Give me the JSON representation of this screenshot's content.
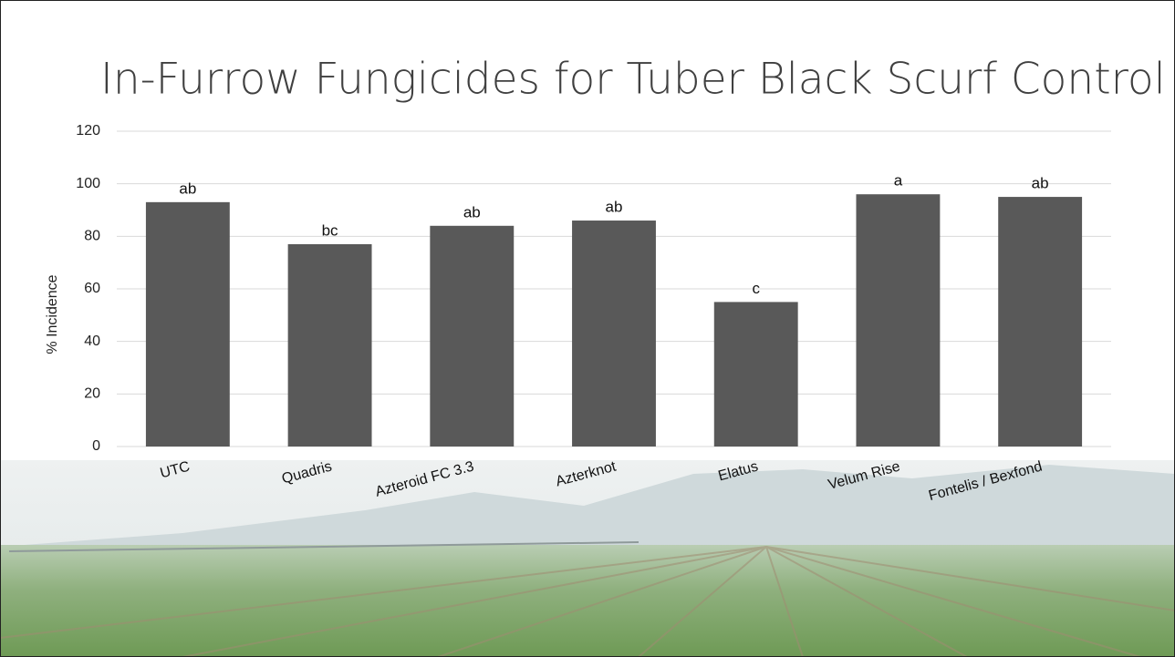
{
  "chart_data": {
    "type": "bar",
    "title": "In-Furrow Fungicides for Tuber Black Scurf Control",
    "y_label": "% Incidence",
    "categories": [
      "UTC",
      "Quadris",
      "Azteroid FC 3.3",
      "Azterknot",
      "Elatus",
      "Velum Rise",
      "Fontelis / Bexfond"
    ],
    "values": [
      93,
      77,
      84,
      86,
      55,
      96,
      95
    ],
    "significance_letters": [
      "ab",
      "bc",
      "ab",
      "ab",
      "c",
      "a",
      "ab"
    ],
    "color": "#595959",
    "ylim": [
      0,
      120
    ],
    "yticks": [
      0,
      20,
      40,
      60,
      80,
      100,
      120
    ],
    "grid": true
  }
}
